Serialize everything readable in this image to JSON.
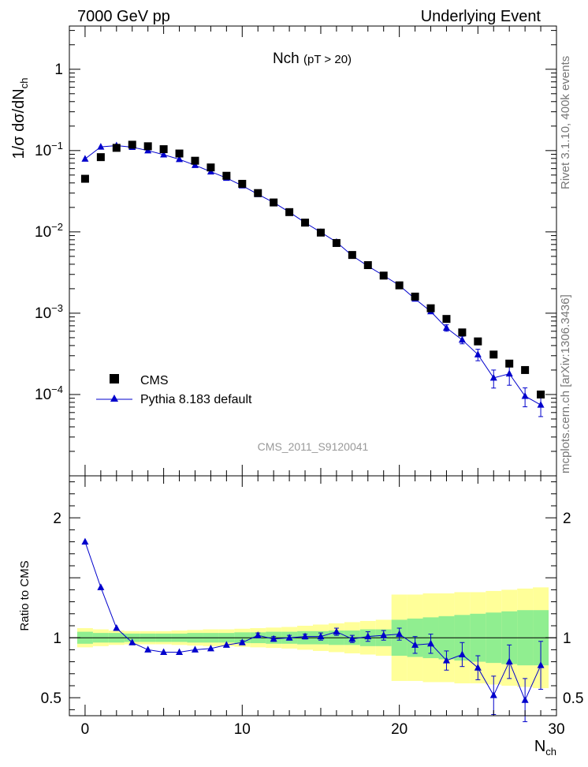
{
  "header": {
    "energy_label": "7000 GeV pp",
    "category_label": "Underlying Event"
  },
  "side_text": {
    "rivet": "Rivet 3.1.10, 400k events",
    "mcplots": "mcplots.cern.ch [arXiv:1306.3436]"
  },
  "colors": {
    "data": "#000000",
    "mc": "#0000cc",
    "band_inner": "#90ee90",
    "band_outer": "#ffff99"
  },
  "chart_data": [
    {
      "type": "scatter",
      "title": "Nch",
      "subtitle": "(pT > 20)",
      "ylabel": "1/σ dσ/dN",
      "ylabel_sub": "ch",
      "yscale": "log",
      "ylim": [
        1e-05,
        3.4
      ],
      "xlim": [
        -1,
        30
      ],
      "yticks": [
        {
          "value": 0.0001,
          "base": "10",
          "exp": "−4"
        },
        {
          "value": 0.001,
          "base": "10",
          "exp": "−3"
        },
        {
          "value": 0.01,
          "base": "10",
          "exp": "−2"
        },
        {
          "value": 0.1,
          "base": "10",
          "exp": "−1"
        },
        {
          "value": 1,
          "base": "1",
          "exp": ""
        }
      ],
      "watermark": "CMS_2011_S9120041",
      "legend": {
        "position": "bottom-left",
        "entries": [
          "CMS",
          "Pythia 8.183 default"
        ]
      },
      "series": [
        {
          "name": "CMS",
          "marker": "square",
          "x": [
            0,
            1,
            2,
            3,
            4,
            5,
            6,
            7,
            8,
            9,
            10,
            11,
            12,
            13,
            14,
            15,
            16,
            17,
            18,
            19,
            20,
            21,
            22,
            23,
            24,
            25,
            26,
            27,
            28,
            29
          ],
          "values": [
            0.045,
            0.083,
            0.108,
            0.118,
            0.113,
            0.104,
            0.092,
            0.075,
            0.062,
            0.049,
            0.039,
            0.03,
            0.023,
            0.0175,
            0.013,
            0.0098,
            0.0073,
            0.0052,
            0.0039,
            0.0029,
            0.0022,
            0.0016,
            0.00115,
            0.00085,
            0.00058,
            0.00045,
            0.00031,
            0.00024,
            0.0002,
            0.0001
          ]
        },
        {
          "name": "Pythia 8.183 default",
          "marker": "triangle",
          "x": [
            0,
            1,
            2,
            3,
            4,
            5,
            6,
            7,
            8,
            9,
            10,
            11,
            12,
            13,
            14,
            15,
            16,
            17,
            18,
            19,
            20,
            21,
            22,
            23,
            24,
            25,
            26,
            27,
            28,
            29
          ],
          "values": [
            0.079,
            0.111,
            0.115,
            0.11,
            0.1,
            0.089,
            0.078,
            0.066,
            0.055,
            0.046,
            0.037,
            0.029,
            0.023,
            0.0175,
            0.013,
            0.0099,
            0.0075,
            0.0051,
            0.0038,
            0.0029,
            0.0022,
            0.0015,
            0.00105,
            0.00066,
            0.00047,
            0.00031,
            0.00016,
            0.00018,
            9.56e-05,
            7.45e-05
          ],
          "errors": [
            0,
            0,
            0,
            0,
            0,
            0,
            0,
            0,
            0,
            0,
            0,
            0,
            0,
            0,
            0,
            0,
            0,
            0,
            0,
            0,
            0,
            0,
            6e-05,
            6e-05,
            5e-05,
            5e-05,
            4e-05,
            5e-05,
            2.5e-05,
            2.1e-05
          ]
        }
      ]
    },
    {
      "type": "scatter",
      "ylabel": "Ratio to CMS",
      "xlabel": "N",
      "xlabel_sub": "ch",
      "ylim": [
        0.35,
        2.35
      ],
      "xlim": [
        -1,
        30
      ],
      "xticks": [
        0,
        10,
        20,
        30
      ],
      "yticks": [
        0.5,
        1,
        2
      ],
      "bands": {
        "edges": [
          -0.5,
          0.5,
          1.5,
          2.5,
          3.5,
          4.5,
          5.5,
          6.5,
          7.5,
          8.5,
          9.5,
          10.5,
          11.5,
          12.5,
          13.5,
          14.5,
          15.5,
          16.5,
          17.5,
          18.5,
          19.5,
          20.5,
          21.5,
          22.5,
          23.5,
          24.5,
          25.5,
          26.5,
          27.5,
          28.5,
          29.5
        ],
        "inner": [
          0.05,
          0.04,
          0.04,
          0.035,
          0.035,
          0.035,
          0.035,
          0.04,
          0.04,
          0.04,
          0.045,
          0.045,
          0.05,
          0.05,
          0.055,
          0.055,
          0.06,
          0.06,
          0.07,
          0.07,
          0.15,
          0.16,
          0.17,
          0.18,
          0.19,
          0.2,
          0.21,
          0.22,
          0.23,
          0.23
        ],
        "outer": [
          0.08,
          0.07,
          0.06,
          0.055,
          0.055,
          0.055,
          0.06,
          0.065,
          0.07,
          0.07,
          0.075,
          0.08,
          0.085,
          0.09,
          0.1,
          0.11,
          0.12,
          0.13,
          0.14,
          0.15,
          0.36,
          0.36,
          0.37,
          0.37,
          0.38,
          0.38,
          0.39,
          0.4,
          0.41,
          0.42
        ]
      },
      "series": [
        {
          "name": "Pythia 8.183 default",
          "x": [
            0,
            1,
            2,
            3,
            4,
            5,
            6,
            7,
            8,
            9,
            10,
            11,
            12,
            13,
            14,
            15,
            16,
            17,
            18,
            19,
            20,
            21,
            22,
            23,
            24,
            25,
            26,
            27,
            28,
            29
          ],
          "values": [
            1.8,
            1.42,
            1.08,
            0.96,
            0.9,
            0.88,
            0.88,
            0.9,
            0.91,
            0.94,
            0.96,
            1.02,
            0.99,
            1.0,
            1.01,
            1.01,
            1.05,
            0.99,
            1.01,
            1.02,
            1.03,
            0.94,
            0.95,
            0.81,
            0.86,
            0.75,
            0.52,
            0.8,
            0.48,
            0.77
          ],
          "errors": [
            0,
            0,
            0,
            0,
            0,
            0,
            0,
            0,
            0,
            0,
            0.015,
            0.02,
            0.02,
            0.02,
            0.02,
            0.03,
            0.03,
            0.03,
            0.04,
            0.04,
            0.05,
            0.07,
            0.08,
            0.08,
            0.1,
            0.1,
            0.16,
            0.14,
            0.18,
            0.2
          ]
        }
      ]
    }
  ]
}
